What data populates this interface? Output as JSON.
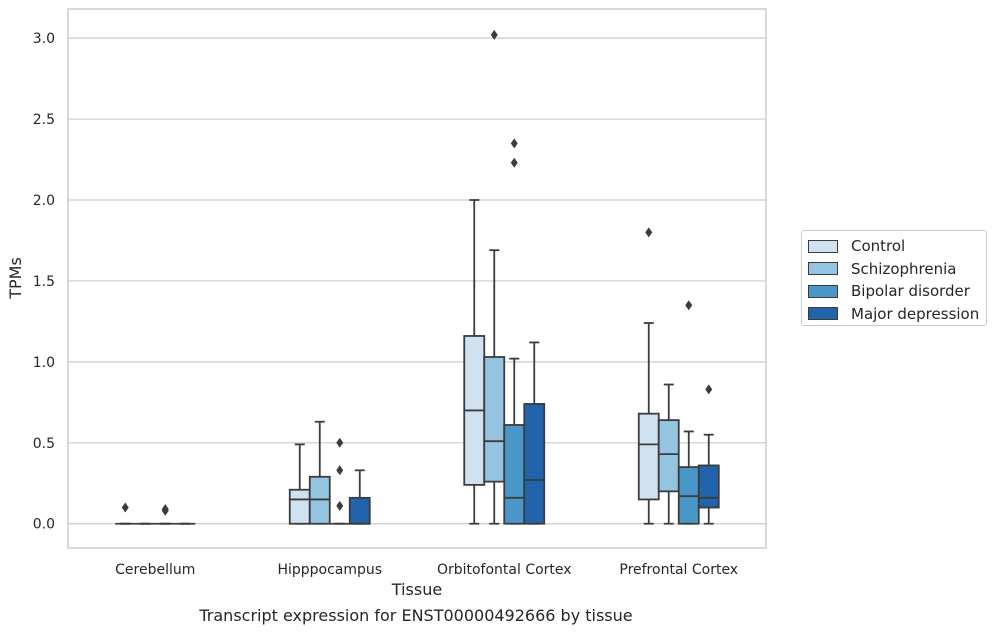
{
  "chart_data": {
    "type": "box",
    "title": "",
    "xlabel": "Tissue",
    "ylabel": "TPMs",
    "caption": "Transcript expression for ENST00000492666 by tissue",
    "ylim": [
      -0.15,
      3.18
    ],
    "yticks": [
      0.0,
      0.5,
      1.0,
      1.5,
      2.0,
      2.5,
      3.0
    ],
    "ytick_labels": [
      "0.0",
      "0.5",
      "1.0",
      "1.5",
      "2.0",
      "2.5",
      "3.0"
    ],
    "grid": "horizontal",
    "legend_position": "right",
    "categories": [
      "Cerebellum",
      "Hipppocampus",
      "Orbitofontal Cortex",
      "Prefrontal Cortex"
    ],
    "series": [
      {
        "name": "Control",
        "color": "#d0e1f2",
        "boxes": [
          {
            "min": 0,
            "q1": 0,
            "median": 0,
            "q3": 0,
            "max": 0,
            "outliers": [
              0.1
            ]
          },
          {
            "min": 0,
            "q1": 0,
            "median": 0.15,
            "q3": 0.21,
            "max": 0.49,
            "outliers": []
          },
          {
            "min": 0,
            "q1": 0.24,
            "median": 0.7,
            "q3": 1.16,
            "max": 2.0,
            "outliers": []
          },
          {
            "min": 0,
            "q1": 0.15,
            "median": 0.49,
            "q3": 0.68,
            "max": 1.24,
            "outliers": [
              1.8
            ]
          }
        ]
      },
      {
        "name": "Schizophrenia",
        "color": "#94c4df",
        "boxes": [
          {
            "min": 0,
            "q1": 0,
            "median": 0,
            "q3": 0,
            "max": 0,
            "outliers": []
          },
          {
            "min": 0,
            "q1": 0,
            "median": 0.15,
            "q3": 0.29,
            "max": 0.63,
            "outliers": []
          },
          {
            "min": 0,
            "q1": 0.26,
            "median": 0.51,
            "q3": 1.03,
            "max": 1.69,
            "outliers": [
              3.02
            ]
          },
          {
            "min": 0,
            "q1": 0.2,
            "median": 0.43,
            "q3": 0.64,
            "max": 0.86,
            "outliers": []
          }
        ]
      },
      {
        "name": "Bipolar disorder",
        "color": "#4a98c9",
        "boxes": [
          {
            "min": 0,
            "q1": 0,
            "median": 0,
            "q3": 0,
            "max": 0,
            "outliers": [
              0.08,
              0.09
            ]
          },
          {
            "min": 0,
            "q1": 0,
            "median": 0,
            "q3": 0,
            "max": 0,
            "outliers": [
              0.11,
              0.33,
              0.5
            ]
          },
          {
            "min": 0,
            "q1": 0,
            "median": 0.16,
            "q3": 0.61,
            "max": 1.02,
            "outliers": [
              2.23,
              2.35
            ]
          },
          {
            "min": 0,
            "q1": 0,
            "median": 0.17,
            "q3": 0.35,
            "max": 0.57,
            "outliers": [
              1.35
            ]
          }
        ]
      },
      {
        "name": "Major depression",
        "color": "#2164ab",
        "boxes": [
          {
            "min": 0,
            "q1": 0,
            "median": 0,
            "q3": 0,
            "max": 0,
            "outliers": []
          },
          {
            "min": 0,
            "q1": 0,
            "median": 0,
            "q3": 0.16,
            "max": 0.33,
            "outliers": []
          },
          {
            "min": 0,
            "q1": 0,
            "median": 0.27,
            "q3": 0.74,
            "max": 1.12,
            "outliers": []
          },
          {
            "min": 0,
            "q1": 0.1,
            "median": 0.16,
            "q3": 0.36,
            "max": 0.55,
            "outliers": [
              0.83
            ]
          }
        ]
      }
    ]
  }
}
